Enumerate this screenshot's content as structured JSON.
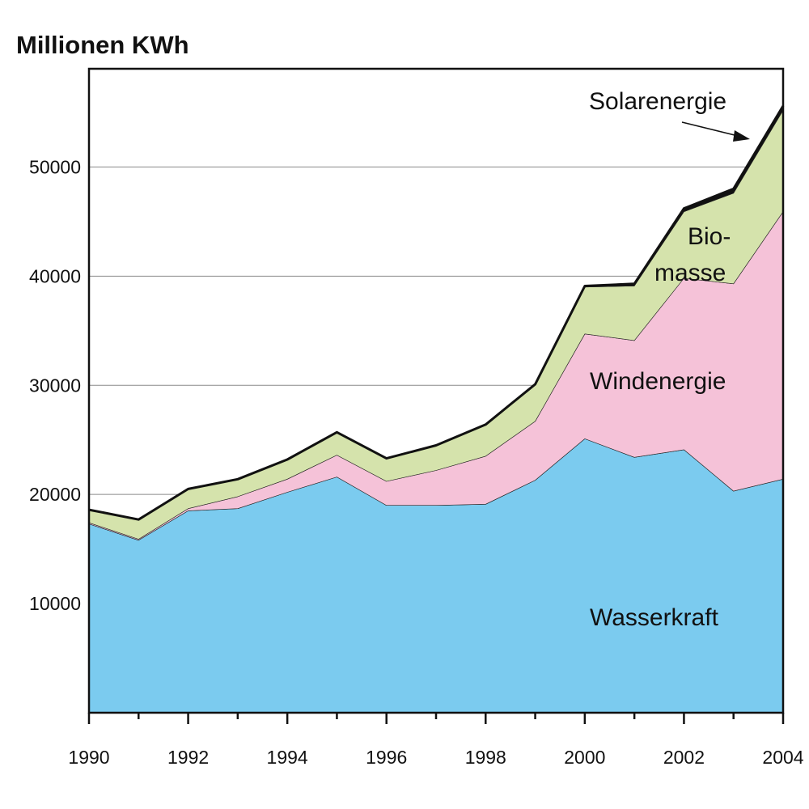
{
  "chart_data": {
    "type": "area",
    "title": "Millionen KWh",
    "xlabel": "",
    "ylabel": "",
    "x": [
      1990,
      1991,
      1992,
      1993,
      1994,
      1995,
      1996,
      1997,
      1998,
      1999,
      2000,
      2001,
      2002,
      2003,
      2004
    ],
    "x_ticks": [
      "1990",
      "1992",
      "1994",
      "1996",
      "1998",
      "2000",
      "2002",
      "2004"
    ],
    "y_ticks": [
      "10000",
      "20000",
      "30000",
      "40000",
      "50000"
    ],
    "xlim": [
      1990,
      2004
    ],
    "ylim": [
      0,
      59000
    ],
    "grid": "horizontal",
    "stacked": true,
    "series": [
      {
        "name": "Wasserkraft",
        "color": "#7bcbef",
        "values": [
          17300,
          15800,
          18500,
          18700,
          20200,
          21600,
          19000,
          19000,
          19100,
          21300,
          25100,
          23400,
          24100,
          20300,
          21400
        ]
      },
      {
        "name": "Windenergie",
        "color": "#f5c2d8",
        "values": [
          100,
          100,
          200,
          1100,
          1200,
          2000,
          2200,
          3200,
          4400,
          5400,
          9600,
          10700,
          15700,
          19000,
          24500
        ]
      },
      {
        "name": "Biomasse",
        "color": "#d5e3ac",
        "values": [
          1200,
          1800,
          1800,
          1600,
          1800,
          2100,
          2100,
          2300,
          2900,
          3400,
          4300,
          5000,
          6100,
          8300,
          9300
        ]
      },
      {
        "name": "Solarenergie",
        "color": "#111111",
        "values": [
          0,
          0,
          0,
          0,
          0,
          0,
          0,
          0,
          0,
          0,
          100,
          200,
          300,
          400,
          400
        ]
      }
    ],
    "labels": {
      "wasser": "Wasserkraft",
      "wind": "Windenergie",
      "bio1": "Bio-",
      "bio2": "masse",
      "solar": "Solarenergie"
    }
  }
}
